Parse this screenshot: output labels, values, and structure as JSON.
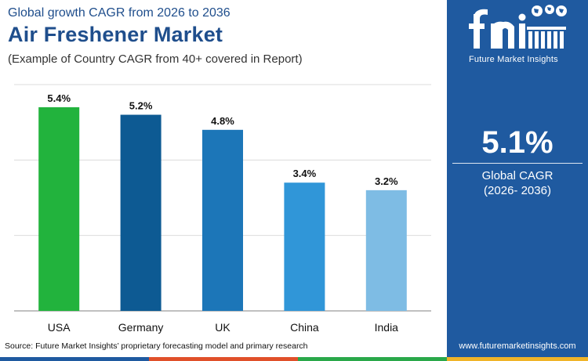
{
  "header": {
    "subtitle": "Global growth CAGR from 2026 to 2036",
    "title": "Air Freshener Market",
    "note": "(Example of Country CAGR from 40+ covered in Report)"
  },
  "source": "Source: Future Market Insights’ proprietary forecasting model and primary research",
  "sidebar": {
    "logo_letters": "fmi",
    "logo_text": "Future Market Insights",
    "cagr_value": "5.1%",
    "cagr_label": "Global CAGR",
    "cagr_period": "(2026- 2036)",
    "website": "www.futuremarketinsights.com",
    "background_color": "#1f5aa0"
  },
  "bottom_bar_colors": [
    "#1f5aa0",
    "#e0502a",
    "#2aa84a",
    "#f0b428"
  ],
  "chart_data": {
    "type": "bar",
    "categories": [
      "USA",
      "Germany",
      "UK",
      "China",
      "India"
    ],
    "values": [
      5.4,
      5.2,
      4.8,
      3.4,
      3.2
    ],
    "value_labels": [
      "5.4%",
      "5.2%",
      "4.8%",
      "3.4%",
      "3.2%"
    ],
    "colors": [
      "#22b33d",
      "#0d5a93",
      "#1c76b8",
      "#3096d8",
      "#7ebce4"
    ],
    "ylim": [
      0,
      6
    ],
    "grid": true,
    "title": "",
    "xlabel": "",
    "ylabel": ""
  }
}
